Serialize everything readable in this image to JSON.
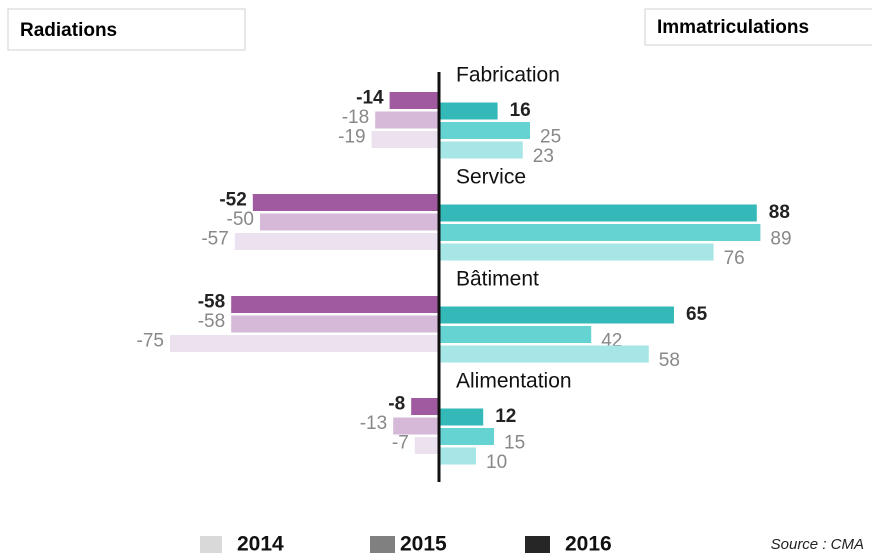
{
  "chart_data": {
    "type": "butterfly-bar",
    "left_title": "Radiations",
    "right_title": "Immatriculations",
    "source": "Source : CMA",
    "categories": [
      "Fabrication",
      "Service",
      "Bâtiment",
      "Alimentation"
    ],
    "xlim": [
      -75,
      90
    ],
    "series": [
      {
        "name": "2016",
        "color": "#262626",
        "radiations": {
          "color": "#a05aa0",
          "values": [
            -14,
            -52,
            -58,
            -8
          ]
        },
        "immatriculations": {
          "color": "#35b8b8",
          "values": [
            16,
            88,
            65,
            12
          ]
        }
      },
      {
        "name": "2015",
        "color": "#808080",
        "radiations": {
          "color": "#d6b8d8",
          "values": [
            -18,
            -50,
            -58,
            -13
          ]
        },
        "immatriculations": {
          "color": "#66d3d3",
          "values": [
            25,
            89,
            42,
            15
          ]
        }
      },
      {
        "name": "2014",
        "color": "#d9d9d9",
        "radiations": {
          "color": "#ece2ef",
          "values": [
            -19,
            -57,
            -75,
            -7
          ]
        },
        "immatriculations": {
          "color": "#a6e6e6",
          "values": [
            23,
            76,
            58,
            10
          ]
        }
      }
    ]
  }
}
